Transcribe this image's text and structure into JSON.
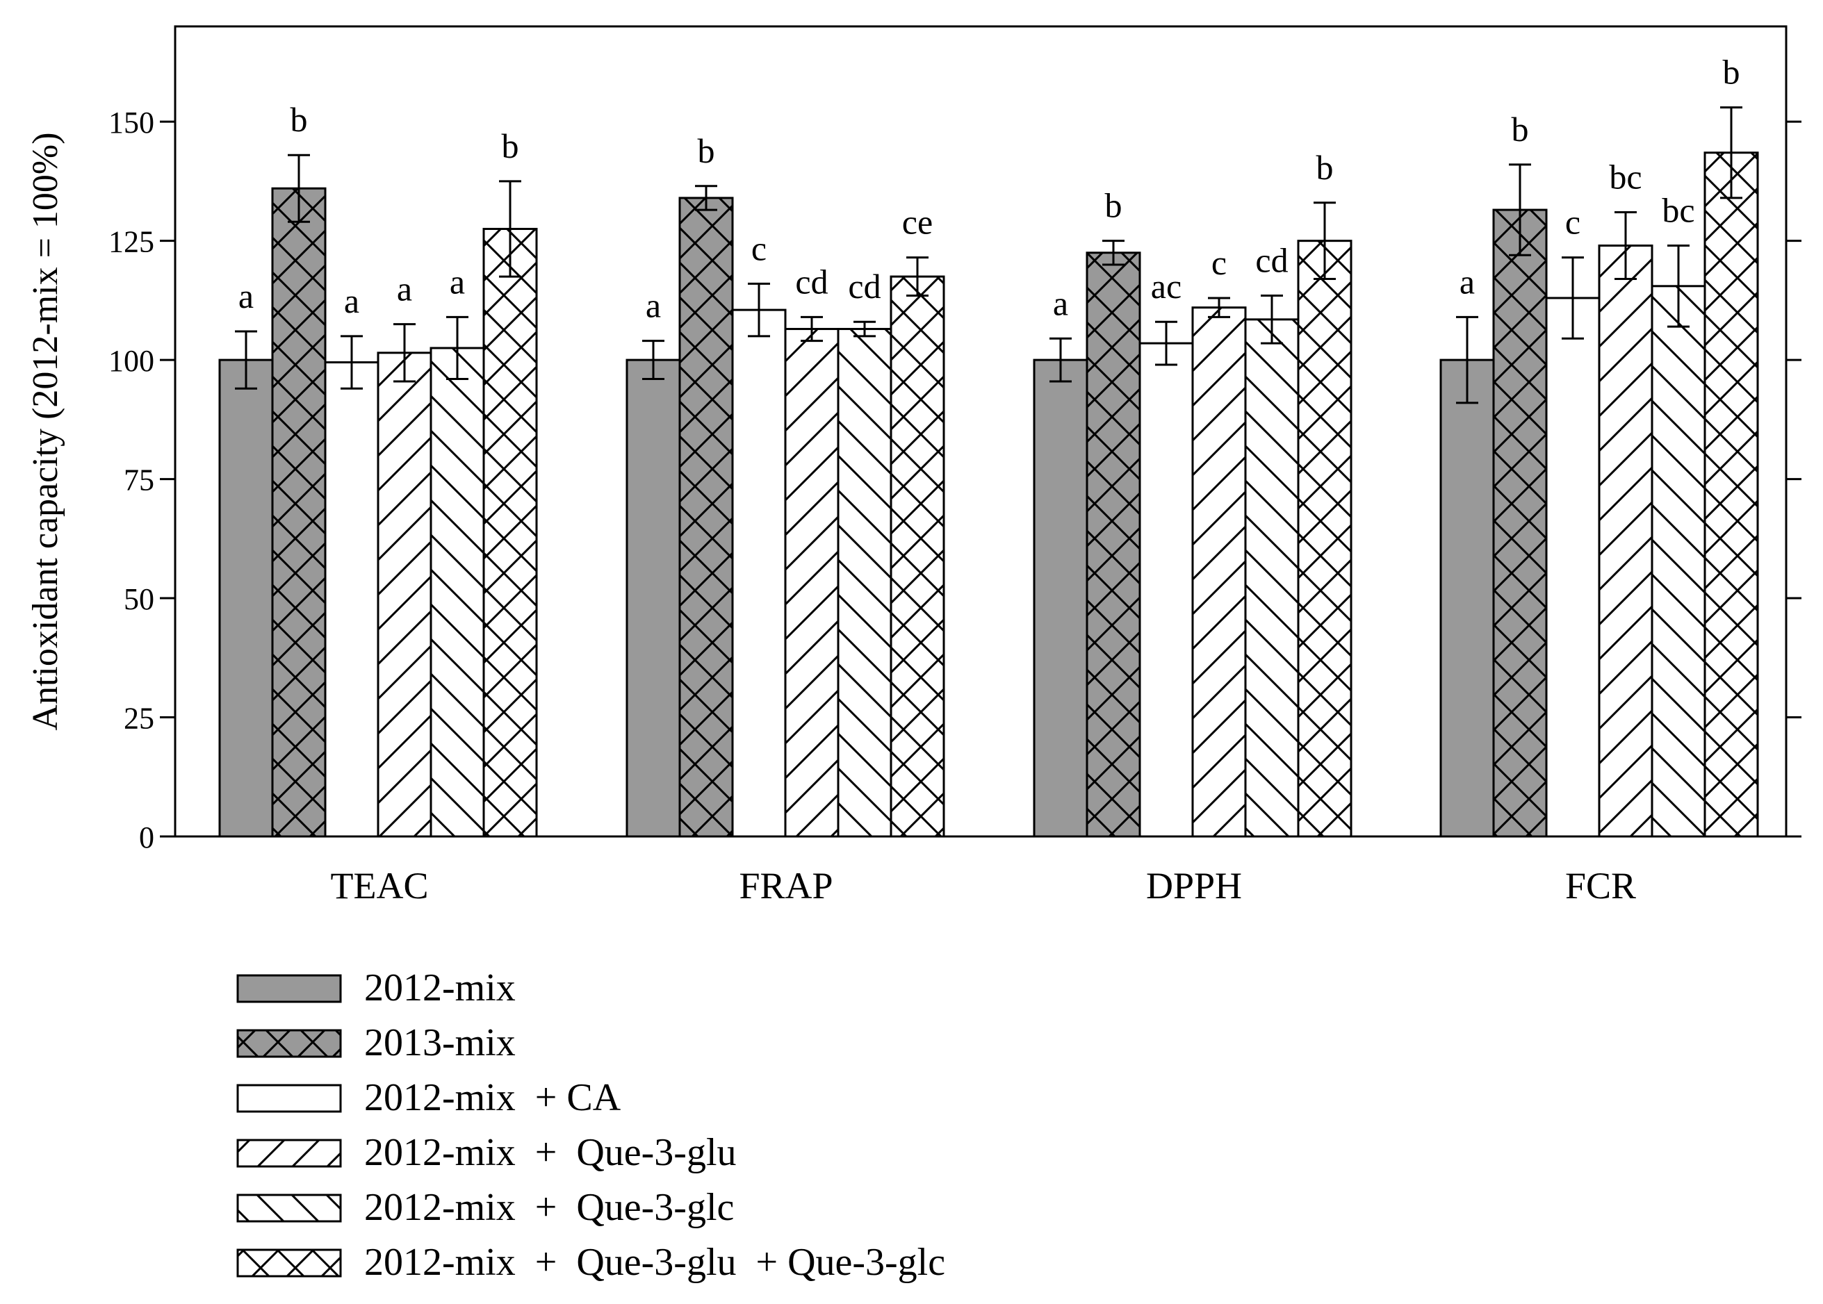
{
  "chart_data": {
    "type": "bar",
    "ylabel": "Antioxidant capacity (2012-mix = 100%)",
    "xlabel": "",
    "ylim": [
      0,
      170
    ],
    "yticks": [
      0,
      25,
      50,
      75,
      100,
      125,
      150
    ],
    "grid": false,
    "legend_position": "bottom-left",
    "categories": [
      "TEAC",
      "FRAP",
      "DPPH",
      "FCR"
    ],
    "colors": {
      "gray": "#999999",
      "white": "#ffffff",
      "stroke": "#000000"
    },
    "series": [
      {
        "name": "2012-mix",
        "fill": "gray",
        "pattern": "none",
        "values": [
          100,
          100,
          100,
          100
        ],
        "errors": [
          6,
          4,
          4.5,
          9
        ],
        "labels": [
          "a",
          "a",
          "a",
          "a"
        ]
      },
      {
        "name": "2013-mix",
        "fill": "gray",
        "pattern": "cross",
        "values": [
          136,
          134,
          122.5,
          131.5
        ],
        "errors": [
          7,
          2.5,
          2.5,
          9.5
        ],
        "labels": [
          "b",
          "b",
          "b",
          "b"
        ]
      },
      {
        "name": "2012-mix  + CA",
        "fill": "white",
        "pattern": "none",
        "values": [
          99.5,
          110.5,
          103.5,
          113
        ],
        "errors": [
          5.5,
          5.5,
          4.5,
          8.5
        ],
        "labels": [
          "a",
          "c",
          "ac",
          "c"
        ]
      },
      {
        "name": "2012-mix  +  Que-3-glu",
        "fill": "white",
        "pattern": "fwd",
        "values": [
          101.5,
          106.5,
          111,
          124
        ],
        "errors": [
          6,
          2.5,
          2,
          7
        ],
        "labels": [
          "a",
          "cd",
          "c",
          "bc"
        ]
      },
      {
        "name": "2012-mix  +  Que-3-glc",
        "fill": "white",
        "pattern": "back",
        "values": [
          102.5,
          106.5,
          108.5,
          115.5
        ],
        "errors": [
          6.5,
          1.5,
          5,
          8.5
        ],
        "labels": [
          "a",
          "cd",
          "cd",
          "bc"
        ]
      },
      {
        "name": "2012-mix  +  Que-3-glu  + Que-3-glc",
        "fill": "white",
        "pattern": "cross",
        "values": [
          127.5,
          117.5,
          125,
          143.5
        ],
        "errors": [
          10,
          4,
          8,
          9.5
        ],
        "labels": [
          "b",
          "ce",
          "b",
          "b"
        ]
      }
    ]
  }
}
